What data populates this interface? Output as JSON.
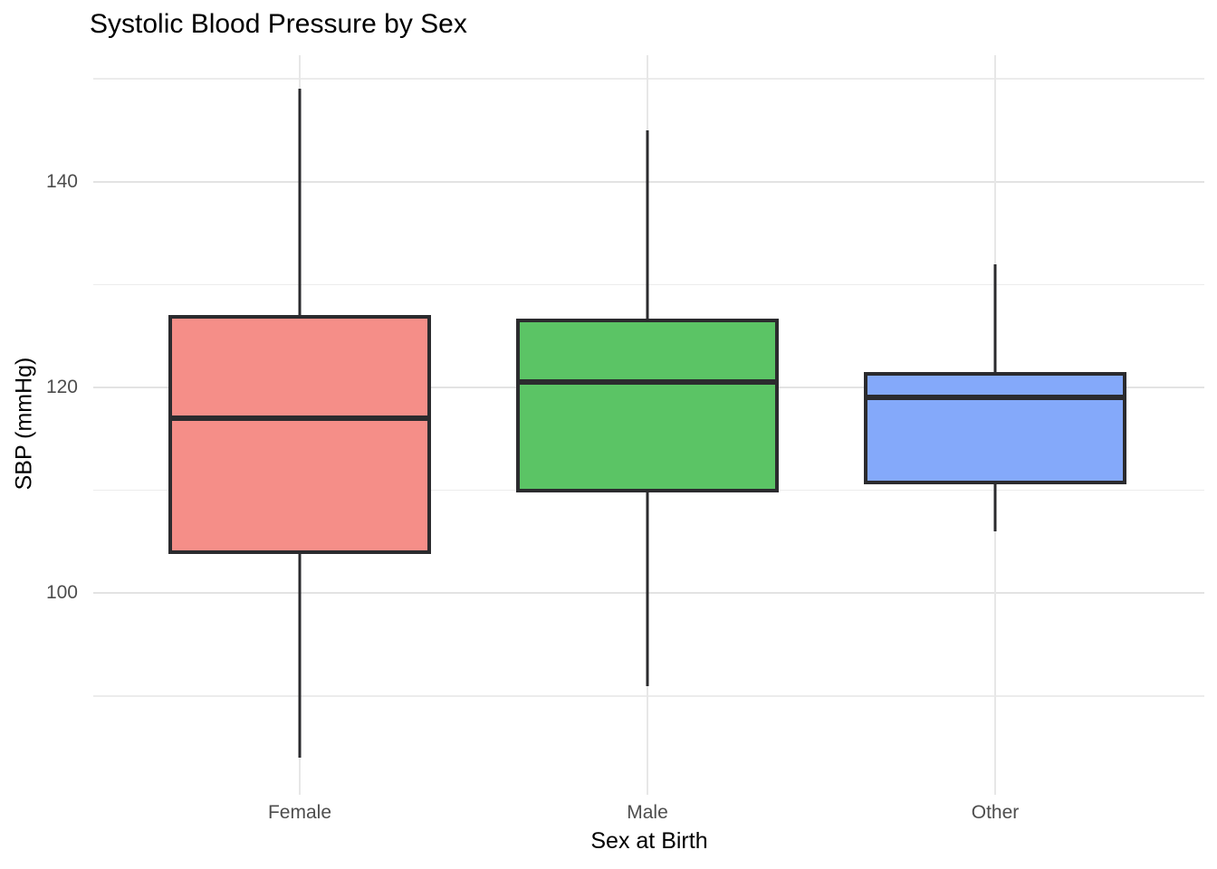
{
  "title": "Systolic Blood Pressure by Sex",
  "chart_data": {
    "type": "boxplot",
    "title": "Systolic Blood Pressure by Sex",
    "xlabel": "Sex at Birth",
    "ylabel": "SBP (mmHg)",
    "categories": [
      "Female",
      "Male",
      "Other"
    ],
    "y_major_ticks": [
      100,
      120,
      140
    ],
    "y_tick_labels": [
      "100",
      "120",
      "140"
    ],
    "y_minor_ticks": [
      90,
      110,
      130,
      150
    ],
    "ylim": [
      80.4,
      152.3
    ],
    "grid": "major-and-minor, light gray, theme_minimal style, no axis lines, no tick marks",
    "legend_position": "none",
    "series": [
      {
        "name": "Female",
        "min": 84,
        "q1": 103.8,
        "median": 117,
        "q3": 127,
        "max": 149,
        "fill": "#F58E88"
      },
      {
        "name": "Male",
        "min": 91,
        "q1": 109.8,
        "median": 120.5,
        "q3": 126.7,
        "max": 145,
        "fill": "#5BC465"
      },
      {
        "name": "Other",
        "min": 106,
        "q1": 110.6,
        "median": 119,
        "q3": 121.5,
        "max": 132,
        "fill": "#84A9FA"
      }
    ],
    "colors": {
      "box_outline": "#2B2B2E",
      "grid_major": "#E3E3E3",
      "grid_minor": "#ECECEC",
      "tick_label": "#4D4D4D",
      "axis_title": "#000000",
      "background": "#FFFFFF"
    }
  }
}
